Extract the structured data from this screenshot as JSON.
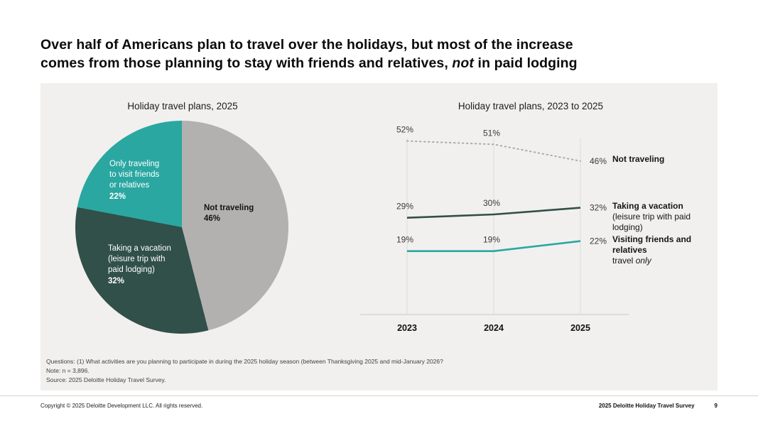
{
  "title": {
    "line1": "Over half of Americans plan to travel over the holidays, but most of the increase",
    "line2_pre": "comes from those planning to stay with friends and relatives, ",
    "line2_italic": "not",
    "line2_post": " in paid lodging"
  },
  "colors": {
    "teal": "#2aa7a1",
    "dark_green": "#305049",
    "gray_slice": "#b2b1af",
    "dotted_gray": "#ababa9",
    "grid": "#dcdbd8",
    "panel_bg": "#f1f0ee"
  },
  "chart_data": [
    {
      "type": "pie",
      "title": "Holiday travel plans, 2025",
      "direction": "clockwise",
      "start_angle_deg": 0,
      "slices": [
        {
          "label": "Not traveling",
          "value": 46,
          "color": "#b2b1af",
          "label_lines": [
            "Not traveling"
          ],
          "pct_label": "46%"
        },
        {
          "label": "Taking a vacation (leisure trip with paid lodging)",
          "value": 32,
          "color": "#305049",
          "label_lines": [
            "Taking a vacation",
            "(leisure trip with",
            "paid lodging)"
          ],
          "pct_label": "32%"
        },
        {
          "label": "Only traveling to visit friends or relatives",
          "value": 22,
          "color": "#2aa7a1",
          "label_lines": [
            "Only traveling",
            "to visit friends",
            "or relatives"
          ],
          "pct_label": "22%"
        }
      ]
    },
    {
      "type": "line",
      "title": "Holiday travel plans, 2023 to 2025",
      "x": [
        "2023",
        "2024",
        "2025"
      ],
      "ylim": [
        0,
        56
      ],
      "grid": "vertical-at-x",
      "legend_position": "right",
      "series": [
        {
          "name": "Not traveling",
          "values": [
            52,
            51,
            46
          ],
          "color": "#ababa9",
          "style": "dotted",
          "legend_bold": "Not traveling",
          "legend_rest": "",
          "legend_rest_italic": ""
        },
        {
          "name": "Taking a vacation (leisure trip with paid lodging)",
          "values": [
            29,
            30,
            32
          ],
          "color": "#305049",
          "style": "solid",
          "legend_bold": "Taking a vacation",
          "legend_rest": "(leisure trip with paid lodging)",
          "legend_rest_italic": ""
        },
        {
          "name": "Visiting friends and relatives travel only",
          "values": [
            19,
            19,
            22
          ],
          "color": "#2aa7a1",
          "style": "solid",
          "legend_bold": "Visiting friends and relatives",
          "legend_rest": "travel ",
          "legend_rest_italic": "only"
        }
      ]
    }
  ],
  "notes": {
    "line1": "Questions: (1) What activities are you planning to participate in during the 2025 holiday season (between Thanksgiving 2025 and mid-January 2026?",
    "line2": "Note: n = 3,896.",
    "line3": "Source: 2025 Deloitte Holiday Travel Survey."
  },
  "footer": {
    "copyright": "Copyright © 2025 Deloitte Development LLC. All rights reserved.",
    "survey": "2025 Deloitte Holiday Travel Survey",
    "page_number": "9"
  }
}
